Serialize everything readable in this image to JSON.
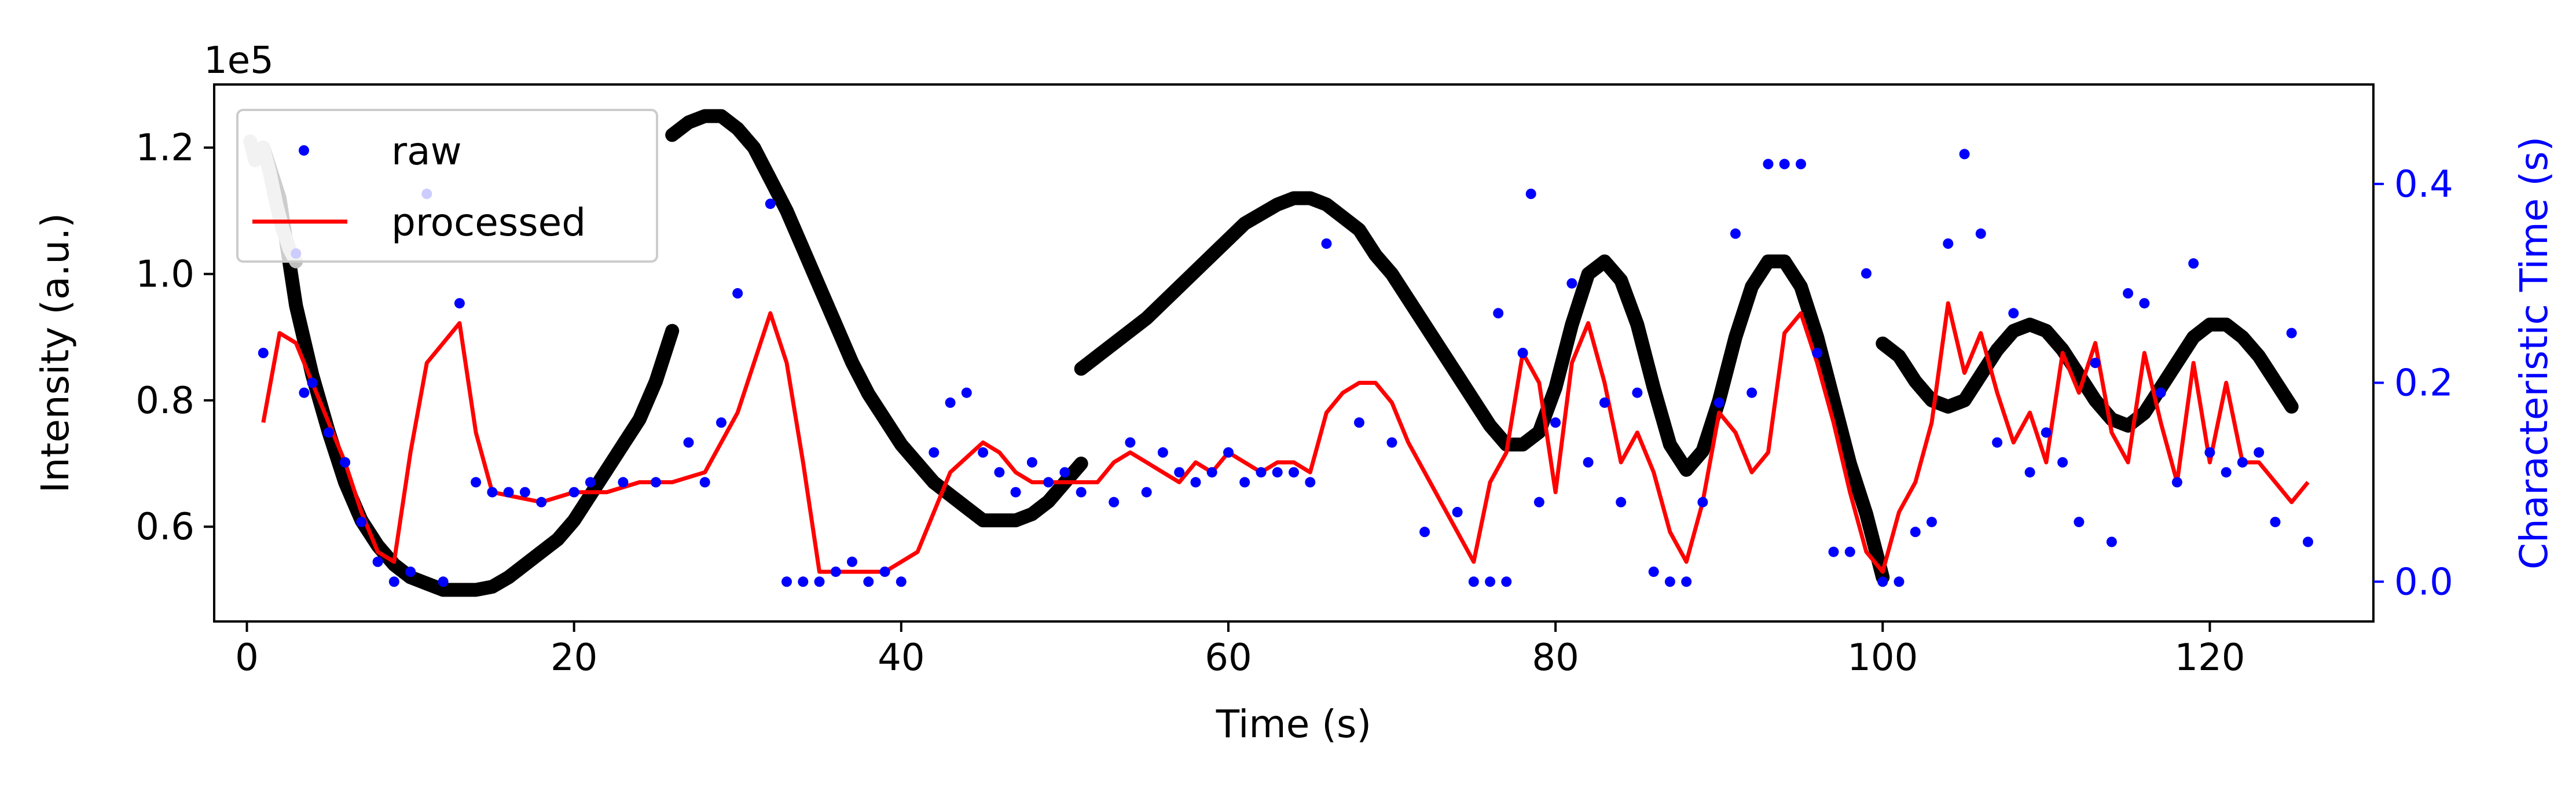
{
  "colors": {
    "raw": "#0000ff",
    "processed": "#ff0000",
    "intensity": "#000000",
    "intensity_faded": "#bfbfbf",
    "right_axis": "#0000ff"
  },
  "chart_data": {
    "type": "scatter",
    "title": "",
    "xlabel": "Time (s)",
    "ylabel_left": "Intensity (a.u.)",
    "ylabel_right": "Characteristic Time (s)",
    "left_offset_label": "1e5",
    "xlim": [
      -2,
      130
    ],
    "ylim_left": [
      0.45,
      1.3
    ],
    "ylim_right": [
      -0.04,
      0.5
    ],
    "x_ticks": [
      0,
      20,
      40,
      60,
      80,
      100,
      120
    ],
    "y_left_ticks": [
      0.6,
      0.8,
      1.0,
      1.2
    ],
    "y_right_ticks": [
      0.0,
      0.2,
      0.4
    ],
    "legend": {
      "position": "top-left",
      "entries": [
        "raw",
        "processed"
      ]
    },
    "intensity_segments": [
      {
        "name": "segment-1",
        "x": [
          1,
          2,
          3,
          4,
          5,
          6,
          7,
          8,
          9,
          10,
          11,
          12,
          13,
          14,
          15,
          16,
          17,
          18,
          19,
          20,
          21,
          22,
          23,
          24,
          25,
          26
        ],
        "y": [
          1.2,
          1.12,
          0.95,
          0.84,
          0.75,
          0.67,
          0.61,
          0.57,
          0.54,
          0.52,
          0.51,
          0.5,
          0.5,
          0.5,
          0.505,
          0.52,
          0.54,
          0.56,
          0.58,
          0.61,
          0.65,
          0.69,
          0.73,
          0.77,
          0.83,
          0.91
        ]
      },
      {
        "name": "segment-2",
        "x": [
          26,
          27,
          28,
          29,
          30,
          31,
          32,
          33,
          34,
          35,
          36,
          37,
          38,
          39,
          40,
          41,
          42,
          43,
          44,
          45,
          46,
          47,
          48,
          49,
          50,
          51
        ],
        "y": [
          1.22,
          1.24,
          1.25,
          1.25,
          1.23,
          1.2,
          1.15,
          1.1,
          1.04,
          0.98,
          0.92,
          0.86,
          0.81,
          0.77,
          0.73,
          0.7,
          0.67,
          0.65,
          0.63,
          0.61,
          0.61,
          0.61,
          0.62,
          0.64,
          0.67,
          0.7
        ]
      },
      {
        "name": "segment-3",
        "x": [
          51,
          53,
          55,
          57,
          59,
          61,
          63,
          64,
          65,
          66,
          67,
          68,
          69,
          70,
          71,
          72,
          73,
          74,
          75,
          76,
          77,
          78,
          79,
          80,
          81,
          82,
          83,
          84,
          85,
          86,
          87,
          88,
          89,
          90,
          91,
          92,
          93,
          94,
          95,
          96,
          97,
          98,
          99,
          100
        ],
        "y": [
          0.85,
          0.89,
          0.93,
          0.98,
          1.03,
          1.08,
          1.11,
          1.12,
          1.12,
          1.11,
          1.09,
          1.07,
          1.03,
          1.0,
          0.96,
          0.92,
          0.88,
          0.84,
          0.8,
          0.76,
          0.73,
          0.73,
          0.75,
          0.82,
          0.92,
          1.0,
          1.02,
          0.99,
          0.92,
          0.82,
          0.73,
          0.69,
          0.72,
          0.8,
          0.9,
          0.98,
          1.02,
          1.02,
          0.98,
          0.9,
          0.8,
          0.7,
          0.62,
          0.52
        ]
      },
      {
        "name": "segment-4",
        "x": [
          100,
          101,
          102,
          103,
          104,
          105,
          106,
          107,
          108,
          109,
          110,
          111,
          112,
          113,
          114,
          115,
          116,
          117,
          118,
          119,
          120,
          121,
          122,
          123,
          124,
          125
        ],
        "y": [
          0.89,
          0.87,
          0.83,
          0.8,
          0.79,
          0.8,
          0.84,
          0.88,
          0.91,
          0.92,
          0.91,
          0.88,
          0.84,
          0.8,
          0.77,
          0.76,
          0.78,
          0.82,
          0.86,
          0.9,
          0.92,
          0.92,
          0.9,
          0.87,
          0.83,
          0.79
        ]
      }
    ],
    "faded_segment": {
      "x": [
        0.2,
        0.5,
        1.0,
        1.4,
        1.8,
        2.2,
        2.6,
        3.0
      ],
      "y": [
        1.21,
        1.18,
        1.2,
        1.16,
        1.11,
        1.07,
        1.04,
        1.02
      ]
    },
    "raw_points": {
      "name": "raw",
      "x": [
        1,
        3,
        3.5,
        4,
        5,
        6,
        7,
        8,
        9,
        10,
        11,
        12,
        13,
        14,
        15,
        16,
        17,
        18,
        20,
        21,
        23,
        25,
        27,
        28,
        29,
        30,
        32,
        33,
        34,
        35,
        36,
        37,
        38,
        39,
        40,
        42,
        43,
        44,
        45,
        46,
        47,
        48,
        49,
        50,
        51,
        53,
        54,
        55,
        56,
        57,
        58,
        59,
        60,
        61,
        62,
        63,
        64,
        65,
        66,
        68,
        70,
        72,
        74,
        75,
        76,
        76.5,
        77,
        78,
        78.5,
        79,
        80,
        81,
        82,
        83,
        84,
        85,
        86,
        87,
        88,
        89,
        90,
        91,
        92,
        93,
        94,
        95,
        96,
        97,
        98,
        99,
        100,
        101,
        102,
        103,
        104,
        105,
        106,
        107,
        108,
        109,
        110,
        111,
        112,
        113,
        114,
        115,
        116,
        117,
        118,
        119,
        120,
        121,
        122,
        123,
        124,
        125,
        126
      ],
      "y": [
        0.23,
        0.33,
        0.19,
        0.2,
        0.15,
        0.12,
        0.06,
        0.02,
        0.0,
        0.01,
        0.39,
        0.0,
        0.28,
        0.1,
        0.09,
        0.09,
        0.09,
        0.08,
        0.09,
        0.1,
        0.1,
        0.1,
        0.14,
        0.1,
        0.16,
        0.29,
        0.38,
        0.0,
        0.0,
        0.0,
        0.01,
        0.02,
        0.0,
        0.01,
        0.0,
        0.13,
        0.18,
        0.19,
        0.13,
        0.11,
        0.09,
        0.12,
        0.1,
        0.11,
        0.09,
        0.08,
        0.14,
        0.09,
        0.13,
        0.11,
        0.1,
        0.11,
        0.13,
        0.1,
        0.11,
        0.11,
        0.11,
        0.1,
        0.34,
        0.16,
        0.14,
        0.05,
        0.07,
        0.0,
        0.0,
        0.27,
        0.0,
        0.23,
        0.39,
        0.08,
        0.16,
        0.3,
        0.12,
        0.18,
        0.08,
        0.19,
        0.01,
        0.0,
        0.0,
        0.08,
        0.18,
        0.35,
        0.19,
        0.42,
        0.42,
        0.42,
        0.23,
        0.03,
        0.03,
        0.31,
        0.0,
        0.0,
        0.05,
        0.06,
        0.34,
        0.43,
        0.35,
        0.14,
        0.27,
        0.11,
        0.15,
        0.12,
        0.06,
        0.22,
        0.04,
        0.29,
        0.28,
        0.19,
        0.1,
        0.32,
        0.13,
        0.11,
        0.12,
        0.13,
        0.06,
        0.25,
        0.04
      ]
    },
    "processed_line": {
      "name": "processed",
      "x": [
        1,
        2,
        3,
        4,
        5,
        6,
        7,
        8,
        9,
        10,
        11,
        12,
        13,
        14,
        15,
        18,
        20,
        22,
        24,
        26,
        28,
        30,
        32,
        33,
        34,
        35,
        37,
        39,
        41,
        43,
        45,
        46,
        47,
        48,
        50,
        52,
        53,
        54,
        55,
        56,
        57,
        58,
        59,
        60,
        61,
        62,
        63,
        64,
        65,
        66,
        67,
        68,
        69,
        70,
        71,
        72,
        73,
        74,
        75,
        76,
        77,
        78,
        79,
        80,
        81,
        82,
        83,
        84,
        85,
        86,
        87,
        88,
        89,
        90,
        91,
        92,
        93,
        94,
        95,
        96,
        97,
        98,
        99,
        100,
        101,
        102,
        103,
        104,
        105,
        106,
        107,
        108,
        109,
        110,
        111,
        112,
        113,
        114,
        115,
        116,
        117,
        118,
        119,
        120,
        121,
        122,
        123,
        124,
        125,
        126
      ],
      "y": [
        0.16,
        0.25,
        0.24,
        0.2,
        0.16,
        0.12,
        0.07,
        0.03,
        0.02,
        0.13,
        0.22,
        0.24,
        0.26,
        0.15,
        0.09,
        0.08,
        0.09,
        0.09,
        0.1,
        0.1,
        0.11,
        0.17,
        0.27,
        0.22,
        0.12,
        0.01,
        0.01,
        0.01,
        0.03,
        0.11,
        0.14,
        0.13,
        0.11,
        0.1,
        0.1,
        0.1,
        0.12,
        0.13,
        0.12,
        0.11,
        0.1,
        0.12,
        0.11,
        0.13,
        0.12,
        0.11,
        0.12,
        0.12,
        0.11,
        0.17,
        0.19,
        0.2,
        0.2,
        0.18,
        0.14,
        0.11,
        0.08,
        0.05,
        0.02,
        0.1,
        0.13,
        0.23,
        0.2,
        0.09,
        0.22,
        0.26,
        0.2,
        0.12,
        0.15,
        0.11,
        0.05,
        0.02,
        0.08,
        0.17,
        0.15,
        0.11,
        0.13,
        0.25,
        0.27,
        0.22,
        0.16,
        0.09,
        0.03,
        0.01,
        0.07,
        0.1,
        0.16,
        0.28,
        0.21,
        0.25,
        0.19,
        0.14,
        0.17,
        0.12,
        0.23,
        0.19,
        0.24,
        0.15,
        0.12,
        0.23,
        0.16,
        0.1,
        0.22,
        0.12,
        0.2,
        0.12,
        0.12,
        0.1,
        0.08,
        0.1
      ]
    }
  }
}
